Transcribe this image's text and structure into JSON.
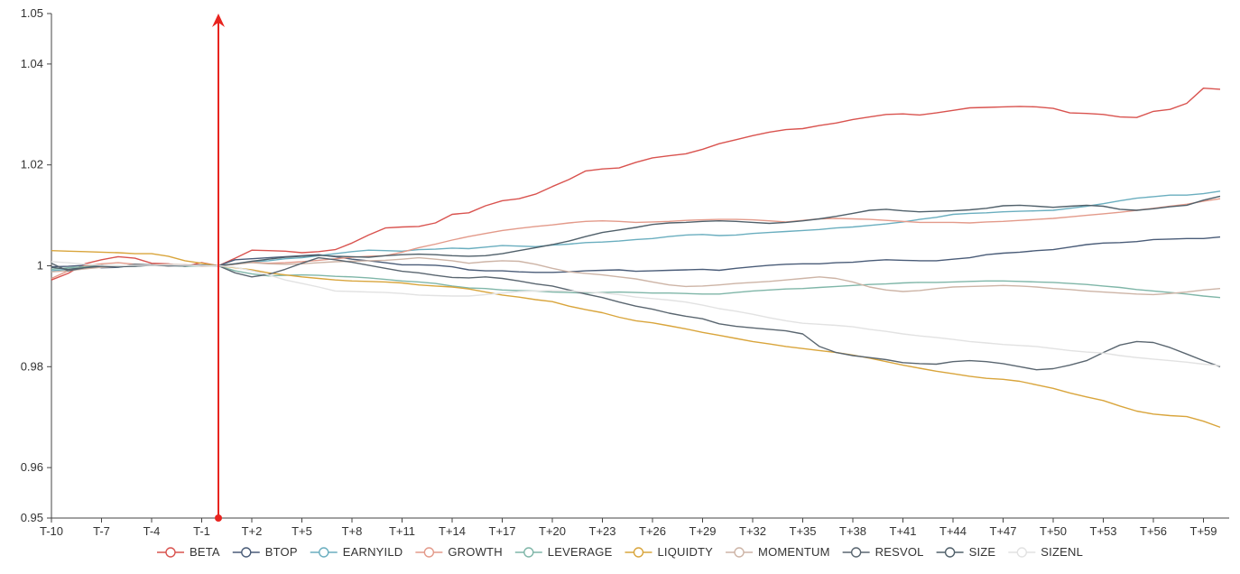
{
  "chart_data": {
    "type": "line",
    "title": "",
    "xlabel": "",
    "ylabel": "",
    "ylim": [
      0.95,
      1.05
    ],
    "y_ticks": [
      "0.95",
      "0.96",
      "0.98",
      "1",
      "1.02",
      "1.04",
      "1.05"
    ],
    "y_tick_values": [
      0.95,
      0.96,
      0.98,
      1.0,
      1.02,
      1.04,
      1.05
    ],
    "x": [
      "T-10",
      "T-9",
      "T-8",
      "T-7",
      "T-6",
      "T-5",
      "T-4",
      "T-3",
      "T-2",
      "T-1",
      "T",
      "T+1",
      "T+2",
      "T+3",
      "T+4",
      "T+5",
      "T+6",
      "T+7",
      "T+8",
      "T+9",
      "T+10",
      "T+11",
      "T+12",
      "T+13",
      "T+14",
      "T+15",
      "T+16",
      "T+17",
      "T+18",
      "T+19",
      "T+20",
      "T+21",
      "T+22",
      "T+23",
      "T+24",
      "T+25",
      "T+26",
      "T+27",
      "T+28",
      "T+29",
      "T+30",
      "T+31",
      "T+32",
      "T+33",
      "T+34",
      "T+35",
      "T+36",
      "T+37",
      "T+38",
      "T+39",
      "T+40",
      "T+41",
      "T+42",
      "T+43",
      "T+44",
      "T+45",
      "T+46",
      "T+47",
      "T+48",
      "T+49",
      "T+50",
      "T+51",
      "T+52",
      "T+53",
      "T+54",
      "T+55",
      "T+56",
      "T+57",
      "T+58",
      "T+59",
      "T+60"
    ],
    "x_tick_labels": [
      "T-10",
      "T-7",
      "T-4",
      "T-1",
      "T+2",
      "T+5",
      "T+8",
      "T+11",
      "T+14",
      "T+17",
      "T+20",
      "T+23",
      "T+26",
      "T+29",
      "T+32",
      "T+35",
      "T+38",
      "T+41",
      "T+44",
      "T+47",
      "T+50",
      "T+53",
      "T+56",
      "T+59"
    ],
    "event_marker": {
      "x": "T",
      "color": "#e8241f"
    },
    "legend_position": "bottom",
    "grid": false,
    "series": [
      {
        "name": "BETA",
        "color": "#d9534f",
        "values": [
          0.9972,
          0.9985,
          1.0004,
          1.0012,
          1.0018,
          1.0015,
          1.0005,
          1.0004,
          0.9999,
          1.0006,
          1.0,
          1.0015,
          1.0031,
          1.003,
          1.0029,
          1.0026,
          1.0028,
          1.0032,
          1.0045,
          1.0061,
          1.0075,
          1.0077,
          1.0078,
          1.0085,
          1.0102,
          1.0105,
          1.0119,
          1.0129,
          1.0133,
          1.0142,
          1.0157,
          1.0171,
          1.0188,
          1.0192,
          1.0194,
          1.0205,
          1.0214,
          1.0218,
          1.0222,
          1.0231,
          1.0242,
          1.025,
          1.0258,
          1.0265,
          1.027,
          1.0272,
          1.0278,
          1.0283,
          1.029,
          1.0295,
          1.03,
          1.0301,
          1.0299,
          1.0303,
          1.0308,
          1.0313,
          1.0314,
          1.0315,
          1.0316,
          1.0315,
          1.0312,
          1.0303,
          1.0302,
          1.03,
          1.0295,
          1.0294,
          1.0306,
          1.031,
          1.0322,
          1.0352,
          1.035
        ]
      },
      {
        "name": "BTOP",
        "color": "#4a5c78",
        "values": [
          0.9998,
          0.9999,
          1.0001,
          0.9996,
          0.9997,
          1.0002,
          1.0001,
          1.0002,
          0.9999,
          1.0001,
          1.0,
          1.0012,
          1.0014,
          1.0016,
          1.0018,
          1.002,
          1.0022,
          1.0018,
          1.0013,
          1.001,
          1.0006,
          1.0002,
          1.0002,
          1.0001,
          0.9998,
          0.9992,
          0.999,
          0.999,
          0.9988,
          0.9987,
          0.9987,
          0.9988,
          0.999,
          0.9991,
          0.9992,
          0.9989,
          0.999,
          0.9991,
          0.9992,
          0.9993,
          0.9991,
          0.9995,
          0.9998,
          1.0001,
          1.0003,
          1.0004,
          1.0004,
          1.0006,
          1.0007,
          1.001,
          1.0012,
          1.0011,
          1.001,
          1.001,
          1.0013,
          1.0016,
          1.0022,
          1.0025,
          1.0027,
          1.003,
          1.0032,
          1.0037,
          1.0042,
          1.0045,
          1.0046,
          1.0048,
          1.0052,
          1.0053,
          1.0054,
          1.0054,
          1.0057
        ]
      },
      {
        "name": "EARNYILD",
        "color": "#6aaebf",
        "values": [
          0.999,
          0.9993,
          0.9997,
          1.0001,
          0.9998,
          1.0,
          1.0002,
          1.0001,
          1.0001,
          1.0,
          1.0,
          1.0004,
          1.0008,
          1.001,
          1.0014,
          1.0016,
          1.002,
          1.0024,
          1.0028,
          1.0031,
          1.003,
          1.0029,
          1.0032,
          1.0033,
          1.0035,
          1.0034,
          1.0037,
          1.004,
          1.0039,
          1.0038,
          1.0041,
          1.0043,
          1.0046,
          1.0047,
          1.0049,
          1.0052,
          1.0054,
          1.0058,
          1.0061,
          1.0062,
          1.006,
          1.0061,
          1.0064,
          1.0066,
          1.0068,
          1.007,
          1.0072,
          1.0075,
          1.0077,
          1.008,
          1.0083,
          1.0087,
          1.0092,
          1.0096,
          1.0102,
          1.0104,
          1.0105,
          1.0107,
          1.0108,
          1.0109,
          1.011,
          1.0114,
          1.0118,
          1.0123,
          1.0129,
          1.0134,
          1.0137,
          1.014,
          1.014,
          1.0143,
          1.0148
        ]
      },
      {
        "name": "GROWTH",
        "color": "#e39a8a",
        "values": [
          0.9975,
          0.999,
          1.0,
          1.0004,
          1.0006,
          1.0003,
          1.0002,
          1.0,
          1.0002,
          0.9999,
          1.0,
          1.0003,
          1.0007,
          1.0005,
          1.0006,
          1.0008,
          1.0011,
          1.0014,
          1.0017,
          1.0019,
          1.002,
          1.0027,
          1.0036,
          1.0043,
          1.0051,
          1.0058,
          1.0064,
          1.007,
          1.0074,
          1.0078,
          1.0081,
          1.0085,
          1.0088,
          1.0089,
          1.0088,
          1.0086,
          1.0087,
          1.0088,
          1.009,
          1.0091,
          1.0092,
          1.0092,
          1.0091,
          1.0089,
          1.0087,
          1.009,
          1.0093,
          1.0094,
          1.0093,
          1.0092,
          1.009,
          1.0088,
          1.0086,
          1.0086,
          1.0086,
          1.0085,
          1.0087,
          1.0088,
          1.009,
          1.0092,
          1.0094,
          1.0097,
          1.01,
          1.0103,
          1.0106,
          1.011,
          1.0114,
          1.0118,
          1.0122,
          1.0128,
          1.0133
        ]
      },
      {
        "name": "LEVERAGE",
        "color": "#7fb6a8",
        "values": [
          0.9993,
          0.9996,
          0.9998,
          1.0001,
          1.0,
          0.9999,
          1.0002,
          1.0001,
          0.9999,
          1.0,
          1.0,
          0.999,
          0.9984,
          0.998,
          0.9981,
          0.9982,
          0.9981,
          0.9979,
          0.9978,
          0.9976,
          0.9973,
          0.997,
          0.9968,
          0.9965,
          0.996,
          0.9956,
          0.9955,
          0.9952,
          0.9951,
          0.995,
          0.9948,
          0.9947,
          0.9946,
          0.9947,
          0.9948,
          0.9947,
          0.9946,
          0.9946,
          0.9945,
          0.9944,
          0.9944,
          0.9947,
          0.995,
          0.9952,
          0.9954,
          0.9955,
          0.9957,
          0.9959,
          0.9961,
          0.9963,
          0.9964,
          0.9966,
          0.9967,
          0.9967,
          0.9968,
          0.9969,
          0.997,
          0.997,
          0.9969,
          0.9968,
          0.9967,
          0.9965,
          0.9963,
          0.996,
          0.9957,
          0.9953,
          0.995,
          0.9947,
          0.9944,
          0.994,
          0.9937
        ]
      },
      {
        "name": "LIQUIDTY",
        "color": "#d9a53c",
        "values": [
          1.003,
          1.0029,
          1.0028,
          1.0027,
          1.0026,
          1.0024,
          1.0024,
          1.0019,
          1.001,
          1.0005,
          1.0,
          0.9996,
          0.9992,
          0.9986,
          0.9982,
          0.9978,
          0.9975,
          0.9972,
          0.997,
          0.9969,
          0.9968,
          0.9966,
          0.9962,
          0.996,
          0.9958,
          0.9954,
          0.9948,
          0.9942,
          0.9938,
          0.9933,
          0.9929,
          0.992,
          0.9913,
          0.9907,
          0.9898,
          0.9891,
          0.9887,
          0.9881,
          0.9875,
          0.9868,
          0.9862,
          0.9856,
          0.985,
          0.9845,
          0.984,
          0.9836,
          0.9832,
          0.9828,
          0.9823,
          0.9817,
          0.981,
          0.9803,
          0.9797,
          0.9791,
          0.9786,
          0.9781,
          0.9777,
          0.9775,
          0.9771,
          0.9764,
          0.9757,
          0.9748,
          0.974,
          0.9733,
          0.9722,
          0.9712,
          0.9706,
          0.9703,
          0.9701,
          0.9692,
          0.968
        ]
      },
      {
        "name": "MOMENTUM",
        "color": "#cdb4a6",
        "values": [
          0.9988,
          0.999,
          0.9994,
          0.9997,
          0.9999,
          1.0001,
          1.0002,
          1.0003,
          1.0002,
          1.0001,
          1.0,
          1.0003,
          1.0006,
          1.0004,
          1.0003,
          1.0004,
          1.0006,
          1.0008,
          1.0009,
          1.001,
          1.0011,
          1.0013,
          1.0016,
          1.0013,
          1.001,
          1.0005,
          1.0008,
          1.001,
          1.0009,
          1.0003,
          0.9995,
          0.9988,
          0.9985,
          0.9982,
          0.9978,
          0.9974,
          0.9968,
          0.9962,
          0.9959,
          0.996,
          0.9962,
          0.9965,
          0.9967,
          0.9969,
          0.9972,
          0.9975,
          0.9978,
          0.9975,
          0.9968,
          0.9958,
          0.9952,
          0.9949,
          0.9951,
          0.9955,
          0.9958,
          0.9959,
          0.996,
          0.9961,
          0.996,
          0.9958,
          0.9955,
          0.9953,
          0.995,
          0.9948,
          0.9946,
          0.9944,
          0.9943,
          0.9945,
          0.9948,
          0.9952,
          0.9955
        ]
      },
      {
        "name": "RESVOL",
        "color": "#5a6670",
        "values": [
          1.0005,
          0.999,
          0.9996,
          1.0001,
          0.9998,
          1.0003,
          1.0002,
          1.0,
          1.0001,
          1.0001,
          1.0,
          0.9986,
          0.9978,
          0.9983,
          0.9993,
          1.0005,
          1.0016,
          1.0012,
          1.0007,
          1.0001,
          0.9995,
          0.9989,
          0.9986,
          0.9981,
          0.9977,
          0.9976,
          0.9978,
          0.9975,
          0.997,
          0.9964,
          0.996,
          0.9952,
          0.9944,
          0.9937,
          0.9928,
          0.992,
          0.9914,
          0.9906,
          0.99,
          0.9895,
          0.9885,
          0.988,
          0.9877,
          0.9874,
          0.9871,
          0.9865,
          0.984,
          0.9828,
          0.9822,
          0.9818,
          0.9814,
          0.9808,
          0.9806,
          0.9805,
          0.981,
          0.9812,
          0.981,
          0.9806,
          0.98,
          0.9794,
          0.9796,
          0.9803,
          0.9812,
          0.9828,
          0.9843,
          0.985,
          0.9848,
          0.9838,
          0.9825,
          0.9812,
          0.98
        ]
      },
      {
        "name": "SIZE",
        "color": "#50606a",
        "values": [
          0.9997,
          0.9993,
          0.9996,
          0.9999,
          0.9998,
          0.9999,
          1.0001,
          1.0,
          1.0,
          1.0001,
          1.0,
          1.0004,
          1.0009,
          1.0013,
          1.0017,
          1.0019,
          1.0021,
          1.0019,
          1.0018,
          1.0017,
          1.002,
          1.0022,
          1.0023,
          1.0022,
          1.002,
          1.0019,
          1.002,
          1.0024,
          1.003,
          1.0036,
          1.0042,
          1.0049,
          1.0058,
          1.0066,
          1.0071,
          1.0076,
          1.0082,
          1.0085,
          1.0086,
          1.0088,
          1.0089,
          1.0088,
          1.0086,
          1.0084,
          1.0086,
          1.0089,
          1.0093,
          1.0098,
          1.0104,
          1.011,
          1.0112,
          1.0109,
          1.0107,
          1.0108,
          1.0109,
          1.0111,
          1.0114,
          1.0119,
          1.012,
          1.0118,
          1.0116,
          1.0118,
          1.012,
          1.0118,
          1.0112,
          1.011,
          1.0113,
          1.0117,
          1.012,
          1.013,
          1.0138
        ]
      },
      {
        "name": "SIZENL",
        "color": "#e2e2e2",
        "values": [
          1.0008,
          1.0006,
          1.0003,
          1.0001,
          1.0,
          1.0001,
          1.0001,
          1.0002,
          1.0001,
          1.0,
          1.0,
          0.9997,
          0.999,
          0.9982,
          0.9972,
          0.9965,
          0.9958,
          0.995,
          0.9949,
          0.9948,
          0.9947,
          0.9945,
          0.9942,
          0.9941,
          0.994,
          0.994,
          0.9943,
          0.9946,
          0.9949,
          0.995,
          0.9951,
          0.995,
          0.9948,
          0.9946,
          0.9943,
          0.9938,
          0.9935,
          0.9932,
          0.9928,
          0.9922,
          0.9915,
          0.991,
          0.9904,
          0.9897,
          0.9891,
          0.9886,
          0.9884,
          0.9882,
          0.9879,
          0.9874,
          0.987,
          0.9865,
          0.9861,
          0.9858,
          0.9854,
          0.985,
          0.9847,
          0.9844,
          0.9842,
          0.984,
          0.9836,
          0.9832,
          0.9829,
          0.9827,
          0.9822,
          0.9818,
          0.9815,
          0.9812,
          0.9809,
          0.9805,
          0.9802
        ]
      }
    ]
  }
}
